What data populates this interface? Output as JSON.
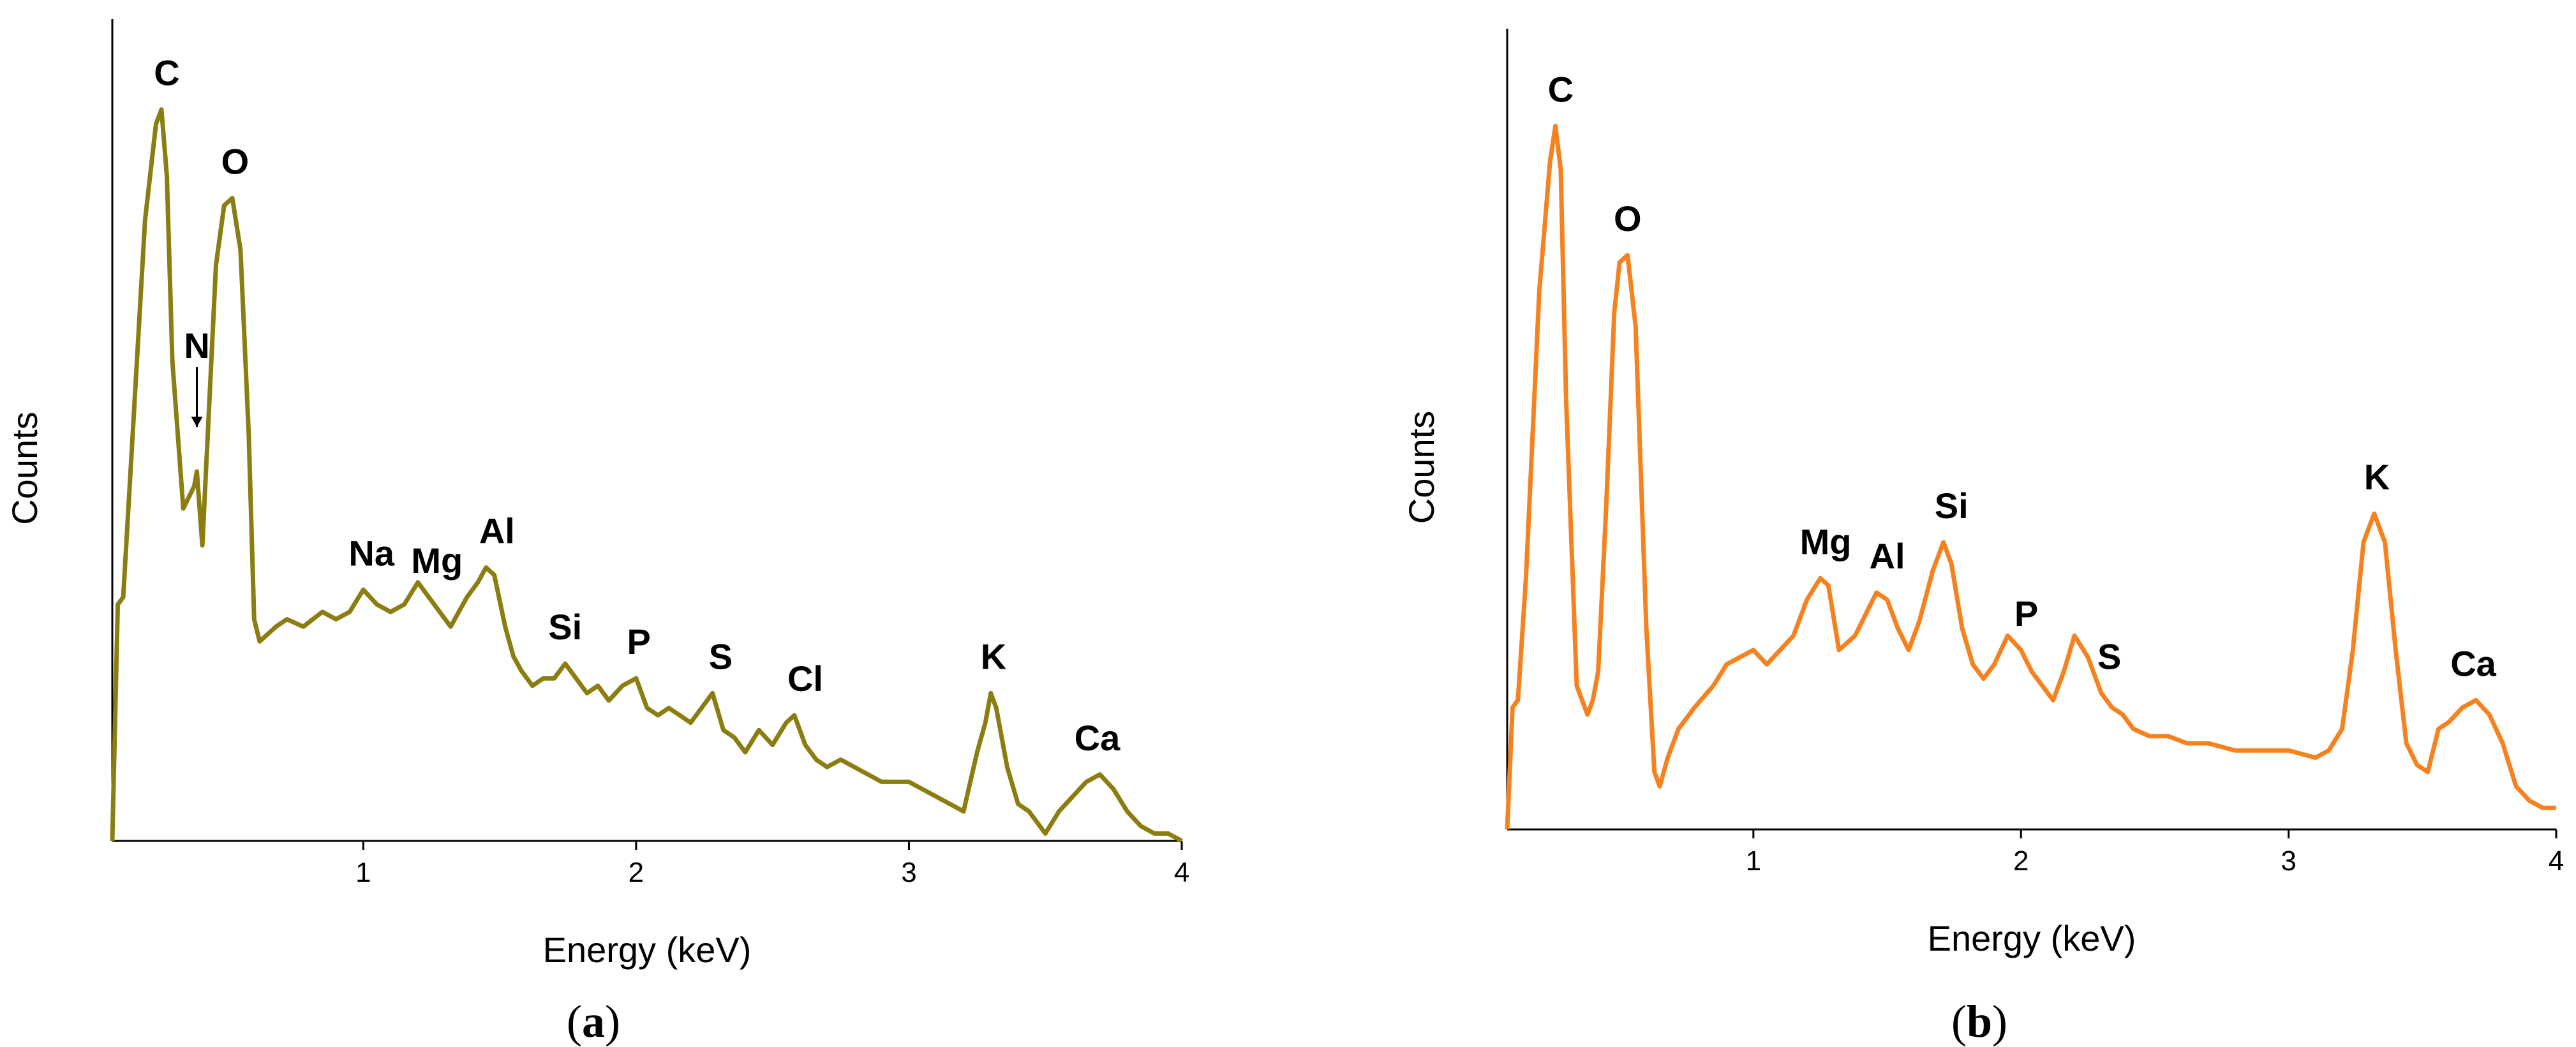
{
  "chart_data": [
    {
      "type": "line",
      "panel_label": "a",
      "xlabel": "Energy (keV)",
      "ylabel": "Counts",
      "xlim": [
        0.08,
        4.0
      ],
      "ylim": [
        0,
        100
      ],
      "x_ticks": [
        1,
        2,
        3,
        4
      ],
      "x_tick_labels": [
        "1",
        "2",
        "3",
        "4"
      ],
      "y_tick_labels_shown": false,
      "grid": false,
      "legend": "none",
      "color": "#8B7D10",
      "series": [
        {
          "x": [
            0.08,
            0.1,
            0.12,
            0.15,
            0.2,
            0.24,
            0.26,
            0.28,
            0.3,
            0.34,
            0.38,
            0.39,
            0.41,
            0.43,
            0.46,
            0.49,
            0.52,
            0.55,
            0.58,
            0.6,
            0.62,
            0.65,
            0.68,
            0.72,
            0.78,
            0.85,
            0.9,
            0.95,
            1.0,
            1.05,
            1.1,
            1.15,
            1.2,
            1.24,
            1.28,
            1.32,
            1.38,
            1.42,
            1.45,
            1.48,
            1.52,
            1.55,
            1.58,
            1.62,
            1.66,
            1.7,
            1.74,
            1.78,
            1.82,
            1.86,
            1.9,
            1.95,
            2.0,
            2.04,
            2.08,
            2.12,
            2.16,
            2.2,
            2.24,
            2.28,
            2.32,
            2.36,
            2.4,
            2.45,
            2.5,
            2.55,
            2.58,
            2.62,
            2.66,
            2.7,
            2.75,
            2.8,
            2.85,
            2.9,
            2.95,
            3.0,
            3.05,
            3.1,
            3.15,
            3.2,
            3.25,
            3.28,
            3.3,
            3.32,
            3.36,
            3.4,
            3.44,
            3.48,
            3.5,
            3.55,
            3.6,
            3.65,
            3.7,
            3.75,
            3.8,
            3.85,
            3.9,
            3.95,
            4.0
          ],
          "values": [
            0,
            32,
            33,
            52,
            84,
            97,
            99,
            90,
            65,
            45,
            48,
            50,
            40,
            55,
            78,
            86,
            87,
            80,
            55,
            30,
            27,
            28,
            29,
            30,
            29,
            31,
            30,
            31,
            34,
            32,
            31,
            32,
            35,
            33,
            31,
            29,
            33,
            35,
            37,
            36,
            29,
            25,
            23,
            21,
            22,
            22,
            24,
            22,
            20,
            21,
            19,
            21,
            22,
            18,
            17,
            18,
            17,
            16,
            18,
            20,
            15,
            14,
            12,
            15,
            13,
            16,
            17,
            13,
            11,
            10,
            11,
            10,
            9,
            8,
            8,
            8,
            7,
            6,
            5,
            4,
            12,
            16,
            20,
            18,
            10,
            5,
            4,
            2,
            1,
            4,
            6,
            8,
            9,
            7,
            4,
            2,
            1,
            1,
            0
          ],
          "peak_labels": [
            {
              "text": "C",
              "x": 0.28
            },
            {
              "text": "N",
              "x": 0.39
            },
            {
              "text": "O",
              "x": 0.53
            },
            {
              "text": "Na",
              "x": 1.03
            },
            {
              "text": "Mg",
              "x": 1.27
            },
            {
              "text": "Al",
              "x": 1.49
            },
            {
              "text": "Si",
              "x": 1.74
            },
            {
              "text": "P",
              "x": 2.01
            },
            {
              "text": "S",
              "x": 2.31
            },
            {
              "text": "Cl",
              "x": 2.62
            },
            {
              "text": "K",
              "x": 3.31
            },
            {
              "text": "Ca",
              "x": 3.69
            }
          ]
        }
      ]
    },
    {
      "type": "line",
      "panel_label": "b",
      "xlabel": "Energy (keV)",
      "ylabel": "Counts",
      "xlim": [
        0.08,
        4.0
      ],
      "ylim": [
        0,
        100
      ],
      "x_ticks": [
        1,
        2,
        3,
        4
      ],
      "x_tick_labels": [
        "1",
        "2",
        "3",
        "4"
      ],
      "y_tick_labels_shown": false,
      "grid": false,
      "legend": "none",
      "color": "#F5821F",
      "series": [
        {
          "x": [
            0.08,
            0.1,
            0.12,
            0.15,
            0.2,
            0.24,
            0.26,
            0.28,
            0.3,
            0.34,
            0.38,
            0.4,
            0.42,
            0.45,
            0.48,
            0.5,
            0.53,
            0.56,
            0.6,
            0.63,
            0.65,
            0.68,
            0.72,
            0.78,
            0.85,
            0.9,
            0.95,
            1.0,
            1.05,
            1.1,
            1.15,
            1.2,
            1.25,
            1.28,
            1.32,
            1.38,
            1.42,
            1.46,
            1.5,
            1.54,
            1.58,
            1.62,
            1.67,
            1.71,
            1.74,
            1.78,
            1.82,
            1.86,
            1.9,
            1.95,
            2.0,
            2.04,
            2.08,
            2.12,
            2.16,
            2.2,
            2.25,
            2.3,
            2.34,
            2.38,
            2.42,
            2.48,
            2.55,
            2.62,
            2.7,
            2.8,
            2.9,
            3.0,
            3.1,
            3.15,
            3.2,
            3.24,
            3.28,
            3.32,
            3.36,
            3.4,
            3.44,
            3.48,
            3.52,
            3.56,
            3.6,
            3.65,
            3.7,
            3.75,
            3.8,
            3.85,
            3.9,
            3.95,
            4.0
          ],
          "values": [
            0,
            17,
            18,
            35,
            75,
            93,
            98,
            92,
            60,
            20,
            16,
            18,
            22,
            45,
            72,
            79,
            80,
            70,
            28,
            8,
            6,
            10,
            14,
            17,
            20,
            23,
            24,
            25,
            23,
            25,
            27,
            32,
            35,
            34,
            25,
            27,
            30,
            33,
            32,
            28,
            25,
            29,
            36,
            40,
            37,
            28,
            23,
            21,
            23,
            27,
            25,
            22,
            20,
            18,
            22,
            27,
            24,
            19,
            17,
            16,
            14,
            13,
            13,
            12,
            12,
            11,
            11,
            11,
            10,
            11,
            14,
            25,
            40,
            44,
            40,
            25,
            12,
            9,
            8,
            14,
            15,
            17,
            18,
            16,
            12,
            6,
            4,
            3,
            3
          ],
          "peak_labels": [
            {
              "text": "C",
              "x": 0.28
            },
            {
              "text": "O",
              "x": 0.53
            },
            {
              "text": "Mg",
              "x": 1.27
            },
            {
              "text": "Al",
              "x": 1.5
            },
            {
              "text": "Si",
              "x": 1.74
            },
            {
              "text": "P",
              "x": 2.02
            },
            {
              "text": "S",
              "x": 2.33
            },
            {
              "text": "K",
              "x": 3.33
            },
            {
              "text": "Ca",
              "x": 3.69
            }
          ]
        }
      ]
    }
  ]
}
